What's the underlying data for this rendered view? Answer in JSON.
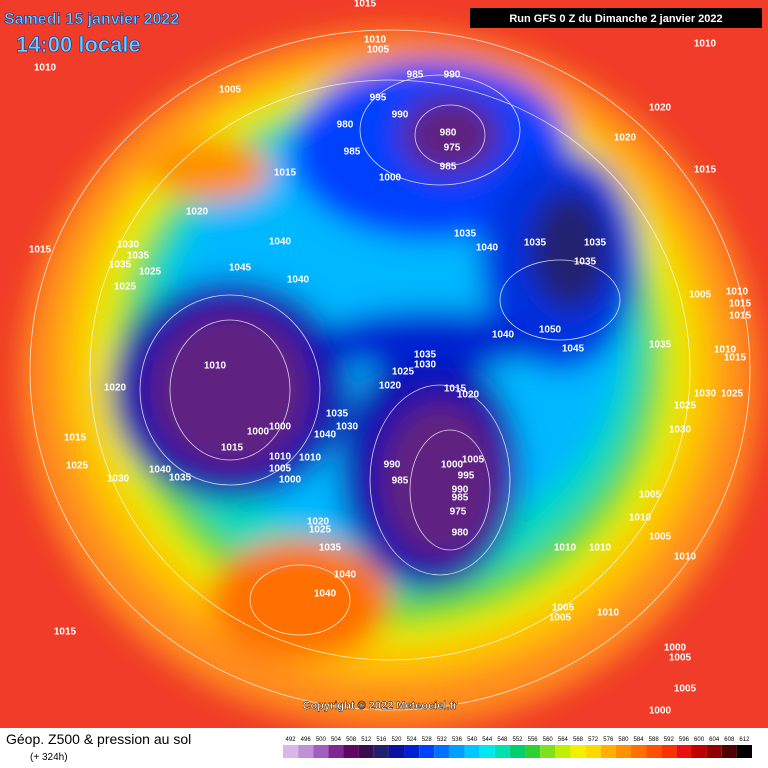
{
  "header": {
    "date": "Samedi 15 janvier 2022",
    "time": "14:00 locale",
    "run": "Run GFS 0 Z du Dimanche 2 janvier 2022"
  },
  "map": {
    "copyright": "Copyright © 2022 Meteociel.fr",
    "isobar_labels": [
      "1015",
      "1010",
      "1010",
      "1005",
      "1005",
      "985",
      "990",
      "995",
      "990",
      "980",
      "985",
      "980",
      "975",
      "985",
      "1000",
      "1015",
      "1020",
      "1010",
      "1020",
      "1020",
      "1015",
      "1015",
      "1030",
      "1035",
      "1035",
      "1025",
      "1025",
      "1040",
      "1045",
      "1040",
      "1035",
      "1040",
      "1035",
      "1035",
      "1035",
      "1005",
      "1010",
      "1015",
      "1015",
      "1040",
      "1050",
      "1045",
      "1035",
      "1010",
      "1015",
      "1035",
      "1030",
      "1025",
      "1020",
      "1015",
      "1020",
      "1010",
      "1020",
      "1035",
      "1030",
      "1040",
      "1000",
      "1000",
      "1015",
      "1010",
      "1005",
      "1000",
      "1010",
      "990",
      "1000",
      "1005",
      "995",
      "985",
      "990",
      "985",
      "975",
      "980",
      "1015",
      "1025",
      "1030",
      "1040",
      "1035",
      "1025",
      "1030",
      "1025",
      "1030",
      "1005",
      "1010",
      "1005",
      "1010",
      "1010",
      "1010",
      "1020",
      "1025",
      "1035",
      "1040",
      "1040",
      "1015",
      "1005",
      "1005",
      "1010",
      "1000",
      "1005",
      "1005",
      "1000"
    ]
  },
  "footer": {
    "title": "Géop. Z500 & pression au sol",
    "lead": "(+ 324h)",
    "legend": {
      "labels": [
        492,
        496,
        500,
        504,
        508,
        512,
        516,
        520,
        524,
        528,
        532,
        536,
        540,
        544,
        548,
        552,
        556,
        560,
        564,
        568,
        572,
        576,
        580,
        584,
        588,
        592,
        596,
        600,
        604,
        608,
        612
      ],
      "colors": [
        "#d8b8e8",
        "#c090d8",
        "#a060c0",
        "#802890",
        "#600860",
        "#3c0c50",
        "#202070",
        "#1010a0",
        "#0020d0",
        "#0040ff",
        "#0070ff",
        "#00a0ff",
        "#00c8ff",
        "#00e8f0",
        "#00e0b0",
        "#00d070",
        "#30d030",
        "#80e020",
        "#c0f000",
        "#f0f000",
        "#ffd800",
        "#ffb000",
        "#ff9000",
        "#ff7000",
        "#ff5000",
        "#ff3000",
        "#e81010",
        "#c00000",
        "#900000",
        "#500000",
        "#000000"
      ]
    }
  }
}
